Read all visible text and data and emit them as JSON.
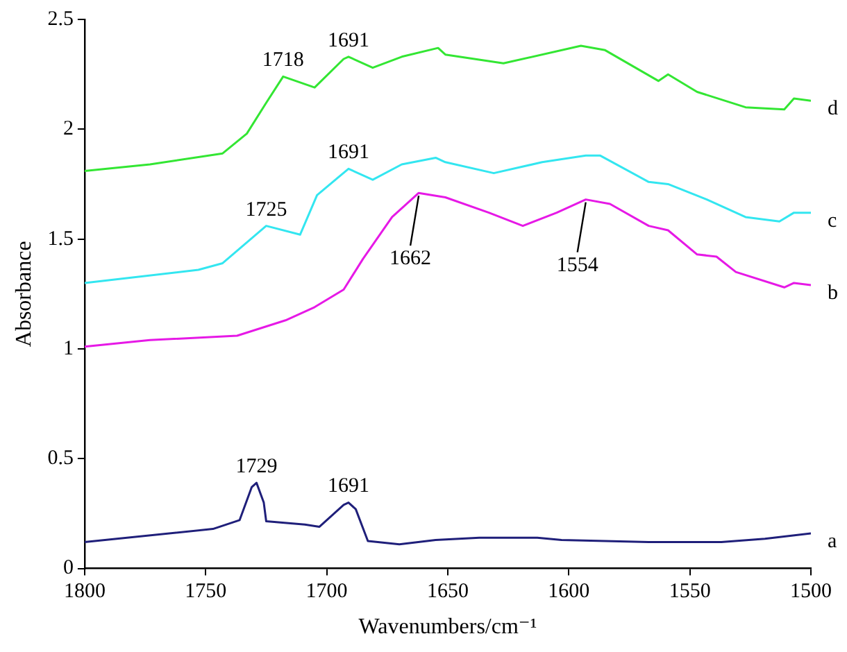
{
  "chart_data": {
    "type": "line",
    "xlabel": "Wavenumbers/cm⁻¹",
    "ylabel": "Absorbance",
    "xlim": [
      1800,
      1500
    ],
    "ylim": [
      0,
      2.5
    ],
    "xticks": [
      1800,
      1750,
      1700,
      1650,
      1600,
      1550,
      1500
    ],
    "yticks": [
      0,
      0.5,
      1,
      1.5,
      2,
      2.5
    ],
    "grid": false,
    "legend": false,
    "marker": "none",
    "line_style": "solid",
    "series": [
      {
        "name": "a",
        "color": "#1f1f7a",
        "x": [
          1800,
          1747,
          1736,
          1731,
          1729,
          1726,
          1725,
          1709,
          1703,
          1693,
          1691,
          1688,
          1683,
          1670,
          1655,
          1637,
          1613,
          1603,
          1567,
          1537,
          1519,
          1500
        ],
        "values": [
          0.12,
          0.18,
          0.22,
          0.37,
          0.39,
          0.3,
          0.215,
          0.2,
          0.19,
          0.29,
          0.3,
          0.27,
          0.125,
          0.11,
          0.13,
          0.14,
          0.14,
          0.13,
          0.12,
          0.12,
          0.135,
          0.16
        ]
      },
      {
        "name": "b",
        "color": "#e619e6",
        "x": [
          1800,
          1773,
          1737,
          1717,
          1705,
          1693,
          1685,
          1673,
          1665,
          1662,
          1651,
          1633,
          1619,
          1605,
          1593,
          1583,
          1567,
          1559,
          1547,
          1539,
          1531,
          1511,
          1507,
          1500
        ],
        "values": [
          1.01,
          1.04,
          1.06,
          1.13,
          1.19,
          1.27,
          1.41,
          1.6,
          1.68,
          1.71,
          1.69,
          1.62,
          1.56,
          1.62,
          1.68,
          1.66,
          1.56,
          1.54,
          1.43,
          1.42,
          1.35,
          1.28,
          1.3,
          1.29
        ]
      },
      {
        "name": "c",
        "color": "#33e6f0",
        "x": [
          1800,
          1753,
          1743,
          1725,
          1711,
          1704,
          1691,
          1681,
          1669,
          1655,
          1651,
          1631,
          1611,
          1593,
          1587,
          1567,
          1559,
          1543,
          1527,
          1513,
          1507,
          1500
        ],
        "values": [
          1.3,
          1.36,
          1.39,
          1.56,
          1.52,
          1.7,
          1.82,
          1.77,
          1.84,
          1.87,
          1.85,
          1.8,
          1.85,
          1.88,
          1.88,
          1.76,
          1.75,
          1.68,
          1.6,
          1.58,
          1.62,
          1.62
        ]
      },
      {
        "name": "d",
        "color": "#33e633",
        "x": [
          1800,
          1773,
          1743,
          1733,
          1725,
          1718,
          1705,
          1693,
          1691,
          1681,
          1669,
          1654,
          1651,
          1627,
          1595,
          1585,
          1563,
          1559,
          1547,
          1527,
          1511,
          1507,
          1500
        ],
        "values": [
          1.81,
          1.84,
          1.89,
          1.98,
          2.12,
          2.24,
          2.19,
          2.32,
          2.33,
          2.28,
          2.33,
          2.37,
          2.34,
          2.3,
          2.38,
          2.36,
          2.22,
          2.25,
          2.17,
          2.1,
          2.09,
          2.14,
          2.13
        ]
      }
    ],
    "annotations": [
      {
        "text": "1729",
        "x": 1729,
        "y": 0.39
      },
      {
        "text": "1691",
        "x": 1691,
        "y": 0.3
      },
      {
        "text": "1662",
        "x": 1662,
        "y": 1.71
      },
      {
        "text": "1554",
        "x": 1593,
        "y": 1.68
      },
      {
        "text": "1725",
        "x": 1725,
        "y": 1.56
      },
      {
        "text": "1691",
        "x": 1691,
        "y": 1.82
      },
      {
        "text": "1718",
        "x": 1718,
        "y": 2.24
      },
      {
        "text": "1691",
        "x": 1691,
        "y": 2.33
      }
    ]
  }
}
